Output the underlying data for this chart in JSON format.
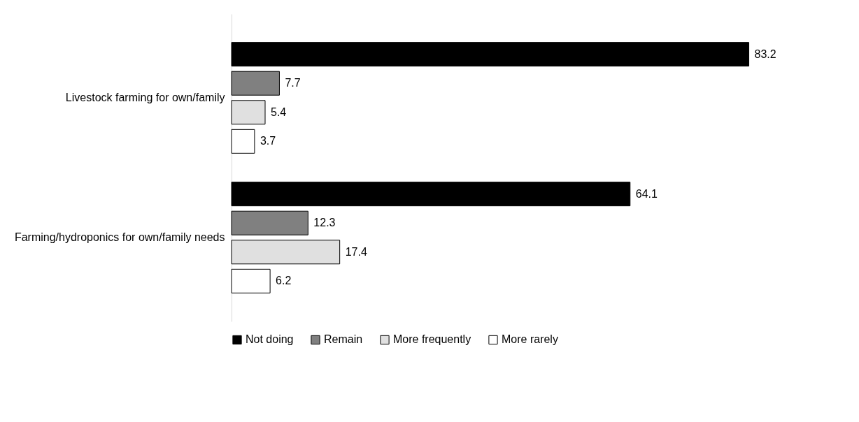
{
  "chart_data": {
    "type": "bar",
    "orientation": "horizontal",
    "categories": [
      "Livestock farming for own/family",
      "Farming/hydroponics for own/family needs"
    ],
    "series": [
      {
        "name": "Not doing",
        "color": "#000000",
        "values": [
          83.2,
          64.1
        ]
      },
      {
        "name": "Remain",
        "color": "#808080",
        "values": [
          7.7,
          12.3
        ]
      },
      {
        "name": "More frequently",
        "color": "#e0e0e0",
        "values": [
          5.4,
          17.4
        ]
      },
      {
        "name": "More rarely",
        "color": "#ffffff",
        "values": [
          3.7,
          6.2
        ]
      }
    ],
    "data_labels": true,
    "legend": "bottom"
  }
}
